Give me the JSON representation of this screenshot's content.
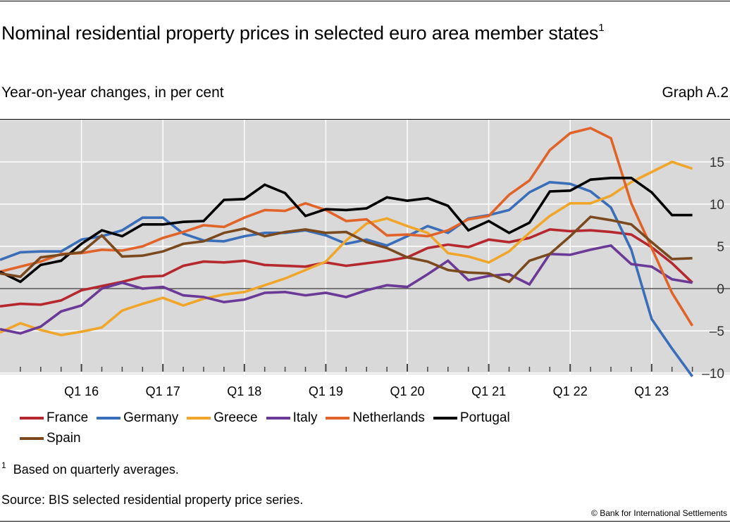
{
  "header": {
    "title": "Nominal residential property prices in selected euro area member states",
    "title_footnote_marker": "1",
    "subtitle": "Year-on-year changes, in per cent",
    "graph_id": "Graph A.2"
  },
  "footer": {
    "footnote_marker": "1",
    "footnote": "Based on quarterly averages.",
    "source": "Source: BIS selected residential property price series.",
    "copyright": "© Bank for International Settlements"
  },
  "chart_data": {
    "type": "line",
    "title": "Nominal residential property prices in selected euro area member states",
    "subtitle": "Year-on-year changes, in per cent",
    "xlabel": "",
    "ylabel": "",
    "ylim": [
      -11,
      20
    ],
    "yticks": [
      -10,
      -5,
      0,
      5,
      10,
      15
    ],
    "ytick_labels": [
      "–10",
      "–5",
      "0",
      "5",
      "10",
      "15"
    ],
    "y_axis_side": "right",
    "x": [
      "Q1 15",
      "Q2 15",
      "Q3 15",
      "Q4 15",
      "Q1 16",
      "Q2 16",
      "Q3 16",
      "Q4 16",
      "Q1 17",
      "Q2 17",
      "Q3 17",
      "Q4 17",
      "Q1 18",
      "Q2 18",
      "Q3 18",
      "Q4 18",
      "Q1 19",
      "Q2 19",
      "Q3 19",
      "Q4 19",
      "Q1 20",
      "Q2 20",
      "Q3 20",
      "Q4 20",
      "Q1 21",
      "Q2 21",
      "Q3 21",
      "Q4 21",
      "Q1 22",
      "Q2 22",
      "Q3 22",
      "Q4 22",
      "Q1 23",
      "Q2 23",
      "Q3 23"
    ],
    "xtick_labels": [
      "Q1 16",
      "Q1 17",
      "Q1 18",
      "Q1 19",
      "Q1 20",
      "Q1 21",
      "Q1 22",
      "Q1 23"
    ],
    "grid": true,
    "legend_position": "bottom",
    "series": [
      {
        "name": "France",
        "color": "#b5282e",
        "values": [
          -2.1,
          -1.8,
          -1.9,
          -1.4,
          -0.2,
          0.3,
          0.8,
          1.4,
          1.5,
          2.7,
          3.2,
          3.1,
          3.3,
          2.8,
          2.7,
          2.6,
          3.1,
          2.7,
          3.0,
          3.3,
          3.7,
          4.8,
          5.2,
          4.9,
          5.8,
          5.5,
          6.0,
          7.0,
          6.8,
          6.9,
          6.7,
          6.4,
          4.9,
          3.0,
          0.7
        ]
      },
      {
        "name": "Germany",
        "color": "#3a6eb8",
        "values": [
          3.4,
          4.3,
          4.4,
          4.4,
          5.8,
          6.2,
          6.9,
          8.4,
          8.4,
          6.5,
          5.7,
          5.6,
          6.2,
          6.6,
          6.6,
          6.9,
          6.3,
          5.3,
          5.8,
          5.1,
          6.2,
          7.4,
          6.6,
          8.3,
          8.7,
          9.3,
          11.4,
          12.6,
          12.4,
          11.5,
          9.6,
          4.6,
          -3.6,
          -7.1,
          -10.4
        ]
      },
      {
        "name": "Greece",
        "color": "#f0a62a",
        "values": [
          -5.2,
          -4.1,
          -4.9,
          -5.5,
          -5.1,
          -4.6,
          -2.6,
          -1.8,
          -1.1,
          -2.0,
          -1.2,
          -0.7,
          -0.4,
          0.4,
          1.2,
          2.2,
          3.2,
          5.7,
          7.7,
          8.3,
          7.4,
          6.6,
          4.2,
          3.8,
          3.1,
          4.4,
          6.6,
          8.6,
          10.1,
          10.1,
          11.0,
          12.6,
          13.8,
          15.0,
          14.2
        ]
      },
      {
        "name": "Italy",
        "color": "#6a3a96",
        "values": [
          -4.8,
          -5.3,
          -4.5,
          -2.7,
          -2.0,
          0.0,
          0.7,
          0.0,
          0.2,
          -0.8,
          -1.0,
          -1.6,
          -1.3,
          -0.5,
          -0.4,
          -0.8,
          -0.5,
          -1.0,
          -0.2,
          0.4,
          0.2,
          1.7,
          3.3,
          1.0,
          1.5,
          1.7,
          0.5,
          4.1,
          4.0,
          4.6,
          5.1,
          2.9,
          2.6,
          1.1,
          0.7
        ]
      },
      {
        "name": "Netherlands",
        "color": "#e0642a",
        "values": [
          2.0,
          2.6,
          3.2,
          4.1,
          4.2,
          4.6,
          4.5,
          5.0,
          6.0,
          6.7,
          7.5,
          7.3,
          8.4,
          9.3,
          9.2,
          10.1,
          9.3,
          8.0,
          8.2,
          6.3,
          6.4,
          6.2,
          6.9,
          8.2,
          8.6,
          11.1,
          12.8,
          16.4,
          18.4,
          19.0,
          17.8,
          10.1,
          4.8,
          -0.5,
          -4.4
        ]
      },
      {
        "name": "Portugal",
        "color": "#000000",
        "values": [
          2.0,
          0.8,
          2.8,
          3.3,
          5.3,
          6.9,
          6.2,
          7.6,
          7.6,
          7.9,
          8.0,
          10.5,
          10.6,
          12.3,
          11.3,
          8.6,
          9.4,
          9.3,
          9.5,
          10.8,
          10.4,
          10.7,
          9.8,
          6.9,
          8.0,
          6.6,
          7.8,
          11.5,
          11.6,
          12.9,
          13.1,
          13.1,
          11.4,
          8.7,
          8.7
        ]
      },
      {
        "name": "Spain",
        "color": "#7a4a1e",
        "values": [
          1.8,
          1.4,
          3.7,
          4.0,
          4.3,
          6.3,
          3.8,
          3.9,
          4.4,
          5.3,
          5.6,
          6.6,
          7.1,
          6.2,
          6.7,
          7.0,
          6.6,
          6.7,
          5.5,
          4.8,
          3.7,
          3.2,
          2.2,
          1.9,
          1.8,
          0.8,
          3.3,
          4.1,
          6.2,
          8.5,
          8.1,
          7.6,
          5.5,
          3.5,
          3.6
        ]
      }
    ]
  }
}
